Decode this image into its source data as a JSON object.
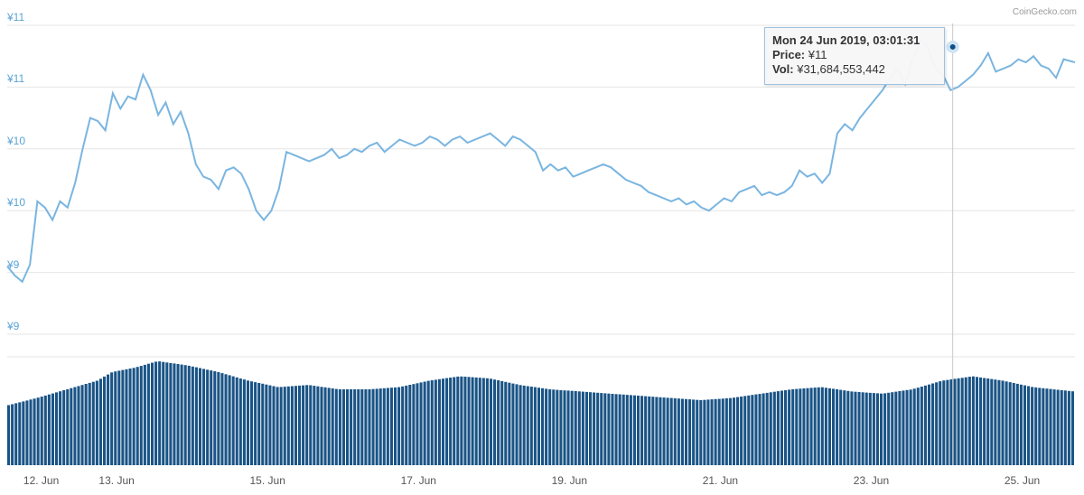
{
  "credit": "CoinGecko.com",
  "tooltip": {
    "date": "Mon 24 Jun 2019, 03:01:31",
    "price_label": "Price:",
    "price_value": "¥11",
    "vol_label": "Vol:",
    "vol_value": "¥31,684,553,442"
  },
  "colors": {
    "line": "#7ab5e0",
    "volume": "#1a5486",
    "axis_text": "#5aa3d6",
    "grid": "#e6e6e6"
  },
  "chart_data": {
    "type": "line",
    "y_tick_labels": [
      "¥11",
      "¥11",
      "¥10",
      "¥10",
      "¥9",
      "¥9"
    ],
    "x_tick_labels": [
      "12. Jun",
      "13. Jun",
      "15. Jun",
      "17. Jun",
      "19. Jun",
      "21. Jun",
      "23. Jun",
      "25. Jun"
    ],
    "x_range_days": [
      11.6,
      25.75
    ],
    "price_range": [
      9.0,
      11.0
    ],
    "price_series": [
      [
        11.6,
        9.44
      ],
      [
        11.7,
        9.38
      ],
      [
        11.8,
        9.34
      ],
      [
        11.9,
        9.45
      ],
      [
        12.0,
        9.86
      ],
      [
        12.1,
        9.82
      ],
      [
        12.2,
        9.74
      ],
      [
        12.3,
        9.86
      ],
      [
        12.4,
        9.82
      ],
      [
        12.5,
        9.98
      ],
      [
        12.6,
        10.2
      ],
      [
        12.7,
        10.4
      ],
      [
        12.8,
        10.38
      ],
      [
        12.9,
        10.32
      ],
      [
        13.0,
        10.56
      ],
      [
        13.1,
        10.46
      ],
      [
        13.2,
        10.54
      ],
      [
        13.3,
        10.52
      ],
      [
        13.4,
        10.68
      ],
      [
        13.5,
        10.58
      ],
      [
        13.6,
        10.42
      ],
      [
        13.7,
        10.5
      ],
      [
        13.8,
        10.36
      ],
      [
        13.9,
        10.44
      ],
      [
        14.0,
        10.3
      ],
      [
        14.1,
        10.1
      ],
      [
        14.2,
        10.02
      ],
      [
        14.3,
        10.0
      ],
      [
        14.4,
        9.94
      ],
      [
        14.5,
        10.06
      ],
      [
        14.6,
        10.08
      ],
      [
        14.7,
        10.04
      ],
      [
        14.8,
        9.94
      ],
      [
        14.9,
        9.8
      ],
      [
        15.0,
        9.74
      ],
      [
        15.1,
        9.8
      ],
      [
        15.2,
        9.94
      ],
      [
        15.3,
        10.18
      ],
      [
        15.4,
        10.16
      ],
      [
        15.5,
        10.14
      ],
      [
        15.6,
        10.12
      ],
      [
        15.7,
        10.14
      ],
      [
        15.8,
        10.16
      ],
      [
        15.9,
        10.2
      ],
      [
        16.0,
        10.14
      ],
      [
        16.1,
        10.16
      ],
      [
        16.2,
        10.2
      ],
      [
        16.3,
        10.18
      ],
      [
        16.4,
        10.22
      ],
      [
        16.5,
        10.24
      ],
      [
        16.6,
        10.18
      ],
      [
        16.7,
        10.22
      ],
      [
        16.8,
        10.26
      ],
      [
        16.9,
        10.24
      ],
      [
        17.0,
        10.22
      ],
      [
        17.1,
        10.24
      ],
      [
        17.2,
        10.28
      ],
      [
        17.3,
        10.26
      ],
      [
        17.4,
        10.22
      ],
      [
        17.5,
        10.26
      ],
      [
        17.6,
        10.28
      ],
      [
        17.7,
        10.24
      ],
      [
        17.8,
        10.26
      ],
      [
        17.9,
        10.28
      ],
      [
        18.0,
        10.3
      ],
      [
        18.1,
        10.26
      ],
      [
        18.2,
        10.22
      ],
      [
        18.3,
        10.28
      ],
      [
        18.4,
        10.26
      ],
      [
        18.5,
        10.22
      ],
      [
        18.6,
        10.18
      ],
      [
        18.7,
        10.06
      ],
      [
        18.8,
        10.1
      ],
      [
        18.9,
        10.06
      ],
      [
        19.0,
        10.08
      ],
      [
        19.1,
        10.02
      ],
      [
        19.2,
        10.04
      ],
      [
        19.3,
        10.06
      ],
      [
        19.4,
        10.08
      ],
      [
        19.5,
        10.1
      ],
      [
        19.6,
        10.08
      ],
      [
        19.7,
        10.04
      ],
      [
        19.8,
        10.0
      ],
      [
        19.9,
        9.98
      ],
      [
        20.0,
        9.96
      ],
      [
        20.1,
        9.92
      ],
      [
        20.2,
        9.9
      ],
      [
        20.3,
        9.88
      ],
      [
        20.4,
        9.86
      ],
      [
        20.5,
        9.88
      ],
      [
        20.6,
        9.84
      ],
      [
        20.7,
        9.86
      ],
      [
        20.8,
        9.82
      ],
      [
        20.9,
        9.8
      ],
      [
        21.0,
        9.84
      ],
      [
        21.1,
        9.88
      ],
      [
        21.2,
        9.86
      ],
      [
        21.3,
        9.92
      ],
      [
        21.4,
        9.94
      ],
      [
        21.5,
        9.96
      ],
      [
        21.6,
        9.9
      ],
      [
        21.7,
        9.92
      ],
      [
        21.8,
        9.9
      ],
      [
        21.9,
        9.92
      ],
      [
        22.0,
        9.96
      ],
      [
        22.1,
        10.06
      ],
      [
        22.2,
        10.02
      ],
      [
        22.3,
        10.04
      ],
      [
        22.4,
        9.98
      ],
      [
        22.5,
        10.04
      ],
      [
        22.6,
        10.3
      ],
      [
        22.7,
        10.36
      ],
      [
        22.8,
        10.32
      ],
      [
        22.9,
        10.4
      ],
      [
        23.0,
        10.46
      ],
      [
        23.1,
        10.52
      ],
      [
        23.2,
        10.58
      ],
      [
        23.3,
        10.66
      ],
      [
        23.4,
        10.72
      ],
      [
        23.5,
        10.62
      ],
      [
        23.6,
        10.78
      ],
      [
        23.7,
        10.9
      ],
      [
        23.8,
        10.86
      ],
      [
        23.9,
        10.72
      ],
      [
        24.0,
        10.68
      ],
      [
        24.1,
        10.58
      ],
      [
        24.2,
        10.6
      ],
      [
        24.3,
        10.64
      ],
      [
        24.4,
        10.68
      ],
      [
        24.5,
        10.74
      ],
      [
        24.6,
        10.82
      ],
      [
        24.7,
        10.7
      ],
      [
        24.8,
        10.72
      ],
      [
        24.9,
        10.74
      ],
      [
        25.0,
        10.78
      ],
      [
        25.1,
        10.76
      ],
      [
        25.2,
        10.8
      ],
      [
        25.3,
        10.74
      ],
      [
        25.4,
        10.72
      ],
      [
        25.5,
        10.66
      ],
      [
        25.6,
        10.78
      ],
      [
        25.75,
        10.76
      ]
    ],
    "volume_series": [
      [
        11.6,
        0.55
      ],
      [
        12.0,
        0.62
      ],
      [
        12.4,
        0.7
      ],
      [
        12.8,
        0.78
      ],
      [
        13.0,
        0.86
      ],
      [
        13.3,
        0.9
      ],
      [
        13.6,
        0.96
      ],
      [
        14.0,
        0.92
      ],
      [
        14.4,
        0.86
      ],
      [
        14.8,
        0.78
      ],
      [
        15.2,
        0.72
      ],
      [
        15.6,
        0.74
      ],
      [
        16.0,
        0.7
      ],
      [
        16.4,
        0.7
      ],
      [
        16.8,
        0.72
      ],
      [
        17.2,
        0.78
      ],
      [
        17.6,
        0.82
      ],
      [
        18.0,
        0.8
      ],
      [
        18.4,
        0.74
      ],
      [
        18.8,
        0.7
      ],
      [
        19.2,
        0.68
      ],
      [
        19.6,
        0.66
      ],
      [
        20.0,
        0.64
      ],
      [
        20.4,
        0.62
      ],
      [
        20.8,
        0.6
      ],
      [
        21.2,
        0.62
      ],
      [
        21.6,
        0.66
      ],
      [
        22.0,
        0.7
      ],
      [
        22.4,
        0.72
      ],
      [
        22.8,
        0.68
      ],
      [
        23.2,
        0.66
      ],
      [
        23.6,
        0.7
      ],
      [
        24.0,
        0.78
      ],
      [
        24.4,
        0.82
      ],
      [
        24.8,
        0.78
      ],
      [
        25.2,
        0.72
      ],
      [
        25.75,
        0.68
      ]
    ]
  }
}
